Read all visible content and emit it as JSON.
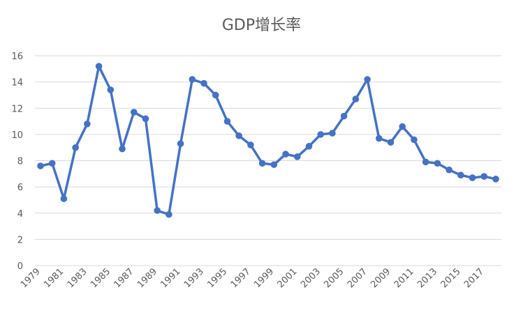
{
  "chart_data": {
    "type": "line",
    "title": "GDP增长率",
    "xlabel": "",
    "ylabel": "",
    "ylim": [
      0,
      16
    ],
    "yticks": [
      0,
      2,
      4,
      6,
      8,
      10,
      12,
      14,
      16
    ],
    "grid": true,
    "legend": "none",
    "x": [
      1979,
      1980,
      1981,
      1982,
      1983,
      1984,
      1985,
      1986,
      1987,
      1988,
      1989,
      1990,
      1991,
      1992,
      1993,
      1994,
      1995,
      1996,
      1997,
      1998,
      1999,
      2000,
      2001,
      2002,
      2003,
      2004,
      2005,
      2006,
      2007,
      2008,
      2009,
      2010,
      2011,
      2012,
      2013,
      2014,
      2015,
      2016,
      2017,
      2018
    ],
    "xtick_labels": [
      "1979",
      "1981",
      "1983",
      "1985",
      "1987",
      "1989",
      "1991",
      "1993",
      "1995",
      "1997",
      "1999",
      "2001",
      "2003",
      "2005",
      "2007",
      "2009",
      "2011",
      "2013",
      "2015",
      "2017"
    ],
    "series": [
      {
        "values": [
          7.6,
          7.8,
          5.1,
          9.0,
          10.8,
          15.2,
          13.4,
          8.9,
          11.7,
          11.2,
          4.2,
          3.9,
          9.3,
          14.2,
          13.9,
          13.0,
          11.0,
          9.9,
          9.2,
          7.8,
          7.7,
          8.5,
          8.3,
          9.1,
          10.0,
          10.1,
          11.4,
          12.7,
          14.2,
          9.7,
          9.4,
          10.6,
          9.6,
          7.9,
          7.8,
          7.3,
          6.9,
          6.7,
          6.8,
          6.6
        ]
      }
    ],
    "colors": {
      "line": "#4472C4",
      "grid": "#D9D9D9",
      "text": "#595959"
    }
  }
}
